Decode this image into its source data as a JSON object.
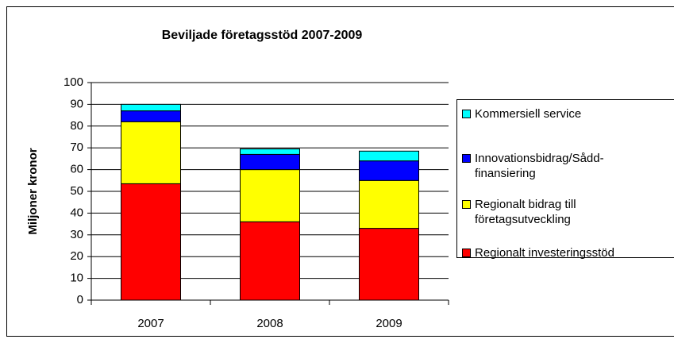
{
  "chart_data": {
    "type": "bar",
    "stacked": true,
    "title": "Beviljade företagsstöd 2007-2009",
    "y_label": "Miljoner kronor",
    "categories": [
      "2007",
      "2008",
      "2009"
    ],
    "series": [
      {
        "name": "Regionalt investeringsstöd",
        "color": "#ff0000",
        "values": [
          53.5,
          36,
          33
        ]
      },
      {
        "name": "Regionalt bidrag till företagsutveckling",
        "color": "#ffff00",
        "values": [
          28.5,
          24,
          22
        ]
      },
      {
        "name": "Innovationsbidrag/Sådd-finansiering",
        "color": "#0000ff",
        "values": [
          5,
          7,
          9
        ]
      },
      {
        "name": "Kommersiell service",
        "color": "#00ffff",
        "values": [
          3,
          2.5,
          4.5
        ]
      }
    ],
    "ylim": [
      0,
      100
    ],
    "yticks": [
      0,
      10,
      20,
      30,
      40,
      50,
      60,
      70,
      80,
      90,
      100
    ],
    "grid": true,
    "legend": "right"
  }
}
